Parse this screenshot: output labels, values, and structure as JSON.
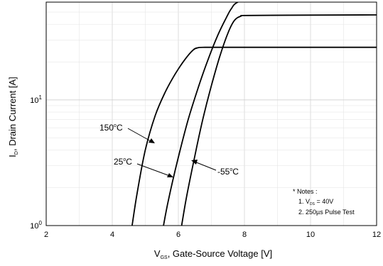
{
  "chart_data": {
    "type": "line",
    "title": "",
    "xlabel": {
      "main": "V",
      "sub": "GS",
      "rest": ", Gate-Source Voltage [V]"
    },
    "ylabel": {
      "main": "I",
      "sub": "D",
      "rest": ", Drain Current [A]"
    },
    "xlim": [
      2,
      12
    ],
    "ylim": [
      1,
      60
    ],
    "yscale": "log",
    "grid": true,
    "x_ticks": [
      2,
      4,
      6,
      8,
      10,
      12
    ],
    "x_tick_labels": [
      "2",
      "4",
      "6",
      "8",
      "10",
      "12"
    ],
    "y_ticks": [
      1,
      10
    ],
    "y_tick_labels": [
      {
        "base": "10",
        "exp": "0"
      },
      {
        "base": "10",
        "exp": "1"
      }
    ],
    "series": [
      {
        "name": "150°C",
        "label": {
          "value": "150",
          "exp": "o",
          "unit": "C"
        },
        "x": [
          4.6,
          4.75,
          5.0,
          5.3,
          5.6,
          5.9,
          6.2,
          6.45,
          6.6,
          6.8,
          8.0,
          10.0,
          12.0
        ],
        "y": [
          1.0,
          1.8,
          4.0,
          7.5,
          11.5,
          16.0,
          21.0,
          25.0,
          26.0,
          26.2,
          26.2,
          26.2,
          26.2
        ]
      },
      {
        "name": "25°C",
        "label": {
          "value": "25",
          "exp": "o",
          "unit": "C"
        },
        "x": [
          5.55,
          5.7,
          6.0,
          6.3,
          6.6,
          6.9,
          7.2,
          7.45,
          7.6,
          7.8,
          8.5
        ],
        "y": [
          1.0,
          1.6,
          3.5,
          7.0,
          12.5,
          21.0,
          33.0,
          45.0,
          53.0,
          60.0,
          70.0
        ]
      },
      {
        "name": "-55°C",
        "label": {
          "value": "-55",
          "exp": "o",
          "unit": "C"
        },
        "x": [
          6.1,
          6.25,
          6.5,
          6.75,
          7.0,
          7.25,
          7.5,
          7.7,
          7.9,
          8.1,
          10.0,
          12.0
        ],
        "y": [
          1.0,
          1.7,
          3.6,
          7.2,
          13.0,
          22.0,
          34.0,
          43.0,
          46.5,
          47.0,
          47.3,
          47.5
        ]
      }
    ],
    "notes": {
      "title": "* Notes :",
      "line1": {
        "prefix": "1. V",
        "sub": "DS",
        "suffix": " = 40V"
      },
      "line2": "2. 250µs Pulse Test"
    },
    "colors": {
      "curve": "#000000",
      "grid": "#c8c8c8",
      "frame": "#000000"
    }
  }
}
